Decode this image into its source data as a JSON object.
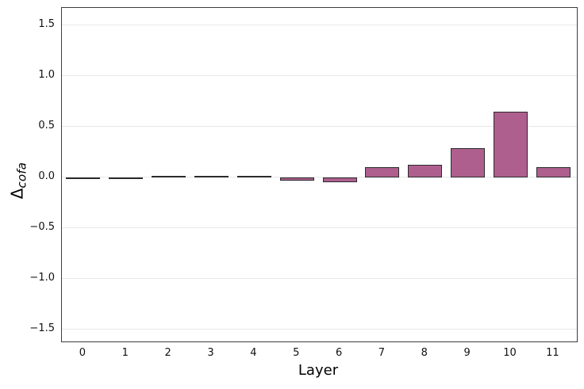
{
  "chart_data": {
    "type": "bar",
    "title": "",
    "xlabel": "Layer",
    "ylabel": "Δ_cofa",
    "ylabel_base": "Δ",
    "ylabel_sub": "cofa",
    "categories": [
      0,
      1,
      2,
      3,
      4,
      5,
      6,
      7,
      8,
      9,
      10,
      11
    ],
    "values": [
      -0.01,
      0.0,
      0.01,
      0.01,
      0.01,
      -0.03,
      -0.05,
      0.1,
      0.12,
      0.29,
      0.65,
      0.1
    ],
    "xtick_labels": [
      "0",
      "1",
      "2",
      "3",
      "4",
      "5",
      "6",
      "7",
      "8",
      "9",
      "10",
      "11"
    ],
    "yticks": [
      -1.5,
      -1.0,
      -0.5,
      0.0,
      0.5,
      1.0,
      1.5
    ],
    "ytick_labels": [
      "−1.5",
      "−1.0",
      "−0.5",
      "0.0",
      "0.5",
      "1.0",
      "1.5"
    ],
    "xlim": [
      -0.5,
      11.55
    ],
    "ylim": [
      -1.62,
      1.67
    ],
    "bar_width": 0.8,
    "grid": "horizontal",
    "legend": "none",
    "colors": {
      "bar_fill": "#ae5f8e",
      "bar_edge": "#2b2b2b",
      "grid": "#e8e8e8",
      "spine": "#3c3c3c",
      "background": "#ffffff",
      "text": "#111111"
    }
  }
}
